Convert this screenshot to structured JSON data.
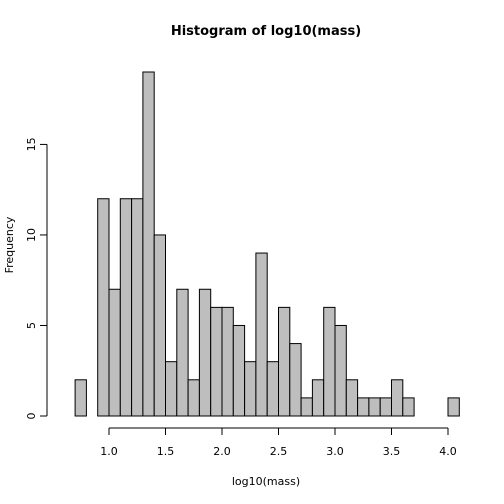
{
  "chart_data": {
    "type": "bar",
    "title": "Histogram of log10(mass)",
    "xlabel": "log10(mass)",
    "ylabel": "Frequency",
    "bin_width": 0.1,
    "bin_start": 0.7,
    "values": [
      2,
      0,
      12,
      7,
      12,
      12,
      19,
      10,
      3,
      7,
      2,
      7,
      6,
      6,
      5,
      3,
      9,
      3,
      6,
      4,
      1,
      2,
      6,
      5,
      2,
      1,
      1,
      1,
      2,
      1,
      0,
      0,
      0,
      1
    ],
    "xticks": [
      1.0,
      1.5,
      2.0,
      2.5,
      3.0,
      3.5,
      4.0
    ],
    "xtick_labels": [
      "1.0",
      "1.5",
      "2.0",
      "2.5",
      "3.0",
      "3.5",
      "4.0"
    ],
    "yticks": [
      0,
      5,
      10,
      15
    ],
    "ytick_labels": [
      "0",
      "5",
      "10",
      "15"
    ],
    "xlim": [
      0.66,
      4.1
    ],
    "ylim": [
      0,
      19
    ],
    "grid": false,
    "colors": {
      "bar_fill": "#bebebe",
      "bar_stroke": "#000000"
    }
  }
}
